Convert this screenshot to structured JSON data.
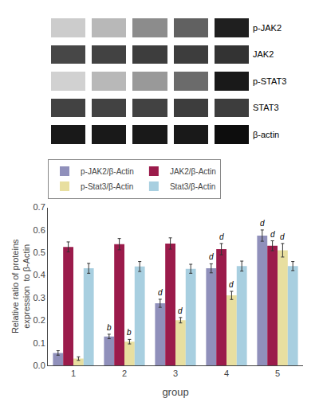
{
  "chart_data": [
    {
      "type": "heatmap",
      "categories": [
        "p-JAK2",
        "JAK2",
        "p-STAT3",
        "STAT3",
        "β-actin"
      ],
      "values": [
        [
          0.2,
          0.28,
          0.45,
          0.62,
          0.88
        ],
        [
          0.72,
          0.74,
          0.76,
          0.76,
          0.8
        ],
        [
          0.18,
          0.28,
          0.4,
          0.58,
          0.9
        ],
        [
          0.74,
          0.74,
          0.74,
          0.76,
          0.76
        ],
        [
          0.9,
          0.9,
          0.9,
          0.9,
          0.95
        ]
      ],
      "zlim": [
        0,
        1
      ],
      "tick_labels": "y"
    },
    {
      "type": "bar",
      "categories": [
        "1",
        "2",
        "3",
        "4",
        "5"
      ],
      "series": [
        {
          "name": "p-JAK2/β-Actin",
          "color": "#9090bb",
          "values": [
            0.055,
            0.128,
            0.275,
            0.43,
            0.575
          ],
          "errors": [
            0.01,
            0.01,
            0.018,
            0.02,
            0.025
          ],
          "annotations": [
            null,
            "b",
            "d",
            "d",
            "d"
          ]
        },
        {
          "name": "JAK2/β-Actin",
          "color": "#9b1b4b",
          "values": [
            0.525,
            0.537,
            0.54,
            0.515,
            0.53
          ],
          "errors": [
            0.022,
            0.025,
            0.025,
            0.025,
            0.022
          ],
          "annotations": [
            null,
            null,
            null,
            "d",
            "d"
          ]
        },
        {
          "name": "p-Stat3/β-Actin",
          "color": "#e8dfa0",
          "values": [
            0.03,
            0.105,
            0.2,
            0.31,
            0.51
          ],
          "errors": [
            0.008,
            0.01,
            0.012,
            0.018,
            0.03
          ],
          "annotations": [
            null,
            "b",
            "d",
            "d",
            "d"
          ]
        },
        {
          "name": "Stat3/β-Actin",
          "color": "#a8cfe0",
          "values": [
            0.43,
            0.438,
            0.428,
            0.44,
            0.44
          ],
          "errors": [
            0.022,
            0.022,
            0.02,
            0.022,
            0.02
          ],
          "annotations": [
            null,
            null,
            null,
            null,
            null
          ]
        }
      ],
      "ylim": [
        0,
        0.7
      ],
      "yticks": [
        {
          "value": 0,
          "label": "0.0"
        },
        0.1,
        0.2,
        0.3,
        0.4,
        0.5,
        0.6,
        0.7
      ],
      "xlabel": "group",
      "ylabel": "Relative ratio of proteins\nexpression  to β-Actin",
      "grid": false,
      "legend": "top"
    }
  ]
}
